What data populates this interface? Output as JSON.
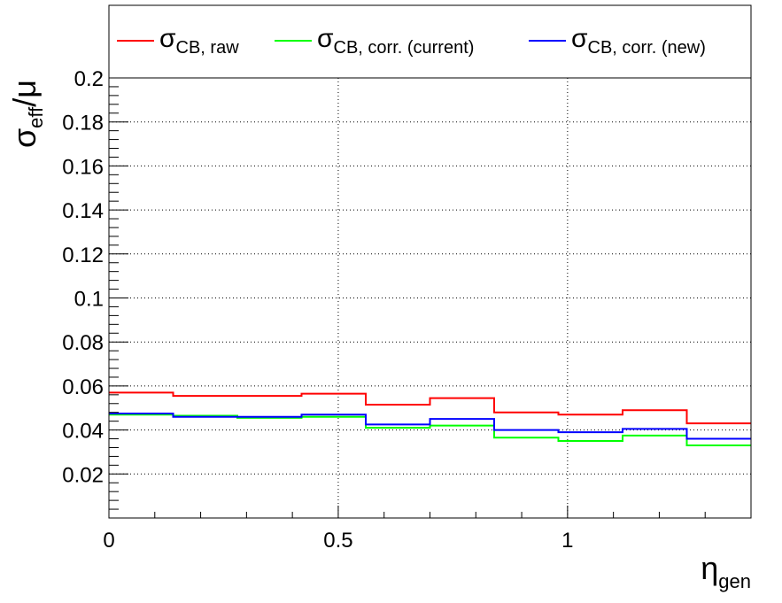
{
  "chart_data": {
    "type": "line",
    "step": true,
    "x_bin_edges": [
      0,
      0.14,
      0.28,
      0.42,
      0.56,
      0.7,
      0.84,
      0.98,
      1.12,
      1.26,
      1.4
    ],
    "series": [
      {
        "name_main": "σ",
        "name_sub": "CB, raw",
        "color": "#ff0000",
        "values": [
          0.057,
          0.0555,
          0.0555,
          0.0565,
          0.0515,
          0.0545,
          0.048,
          0.047,
          0.049,
          0.043
        ]
      },
      {
        "name_main": "σ",
        "name_sub": "CB, corr. (current)",
        "color": "#00ff00",
        "values": [
          0.047,
          0.0465,
          0.0455,
          0.046,
          0.041,
          0.042,
          0.0365,
          0.035,
          0.0375,
          0.033
        ]
      },
      {
        "name_main": "σ",
        "name_sub": "CB, corr. (new)",
        "color": "#0000ff",
        "values": [
          0.0475,
          0.046,
          0.046,
          0.047,
          0.0425,
          0.045,
          0.04,
          0.039,
          0.0405,
          0.036
        ]
      }
    ],
    "xlim": [
      0,
      1.4
    ],
    "ylim": [
      0,
      0.2
    ],
    "x_ticks": [
      "0",
      "0.5",
      "1"
    ],
    "x_tick_values": [
      0,
      0.5,
      1
    ],
    "y_ticks": [
      "0.02",
      "0.04",
      "0.06",
      "0.08",
      "0.1",
      "0.12",
      "0.14",
      "0.16",
      "0.18",
      "0.2"
    ],
    "y_tick_values": [
      0.02,
      0.04,
      0.06,
      0.08,
      0.1,
      0.12,
      0.14,
      0.16,
      0.18,
      0.2
    ],
    "xlabel_main": "η",
    "xlabel_sub": "gen",
    "ylabel_main": "σ",
    "ylabel_sub": "eff",
    "ylabel_tail": "/μ",
    "grid": true,
    "legend_position": "top"
  }
}
